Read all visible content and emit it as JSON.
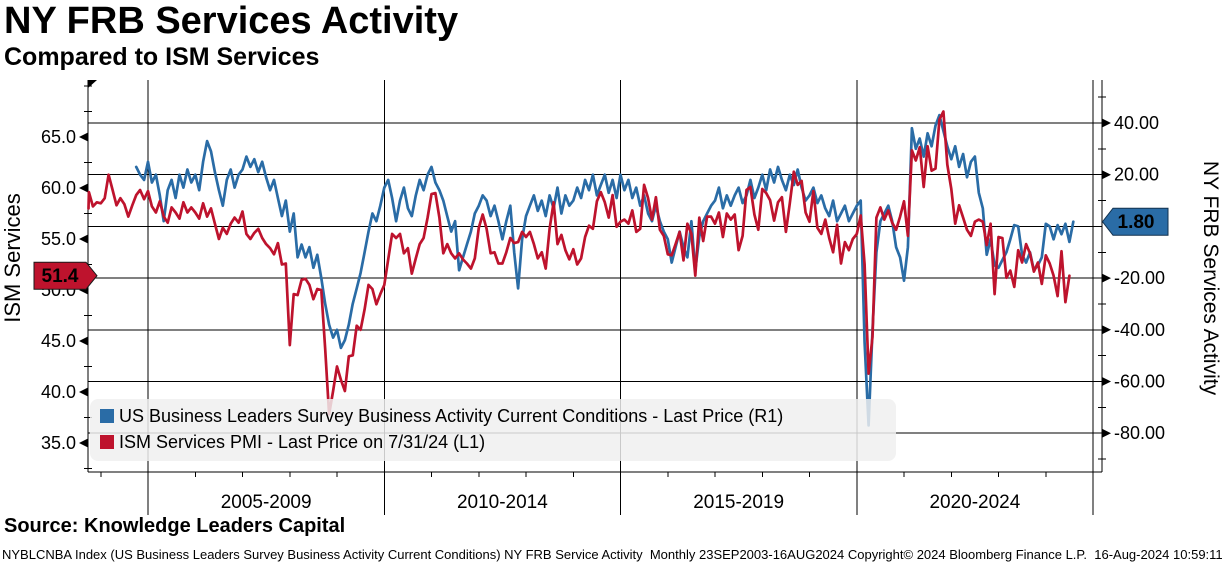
{
  "header": {
    "title": "NY FRB Services Activity",
    "subtitle": "Compared to ISM Services"
  },
  "source_line": "Source: Knowledge Leaders Capital",
  "footnote": "NYBLCNBA Index (US Business Leaders Survey Business Activity Current Conditions) NY FRB Service Activity  Monthly 23SEP2003-16AUG2024 Copyright© 2024 Bloomberg Finance L.P.  16-Aug-2024 10:59:11",
  "chart_data": {
    "type": "line",
    "title": "NY FRB Services Activity",
    "subtitle": "Compared to ISM Services",
    "grid": true,
    "x_axis": {
      "period_labels": [
        "2005-2009",
        "2010-2014",
        "2015-2019",
        "2020-2024"
      ],
      "boundary_years": [
        2005,
        2010,
        2015,
        2020,
        2025
      ],
      "range_start": "Sep 2003",
      "range_end": "Aug 2024",
      "frequency": "monthly"
    },
    "left_axis": {
      "title": "ISM Services",
      "tick_labels": [
        "65.0",
        "60.0",
        "55.0",
        "50.0",
        "45.0",
        "40.0",
        "35.0"
      ],
      "tick_values": [
        65,
        60,
        55,
        50,
        45,
        40,
        35
      ],
      "minor_tick_values": [
        70,
        67.5,
        62.5,
        57.5,
        52.5,
        47.5,
        42.5,
        37.5,
        32.5
      ],
      "last_price": {
        "label": "51.4",
        "value": 51.4
      }
    },
    "right_axis": {
      "title": "NY FRB Services Activity",
      "tick_labels": [
        "40.00",
        "20.00",
        "-20.00",
        "-40.00",
        "-60.00",
        "-80.00"
      ],
      "tick_values": [
        40,
        20,
        -20,
        -40,
        -60,
        -80
      ],
      "grid_values": [
        40,
        20,
        0,
        -20,
        -40,
        -60,
        -80
      ],
      "minor_tick_values": [
        50,
        30,
        10,
        -10,
        -30,
        -50,
        -70,
        -90
      ],
      "last_price": {
        "label": "1.80",
        "value": 1.8
      }
    },
    "legend": [
      {
        "label": "US Business Leaders Survey Business Activity Current Conditions - Last Price (R1)",
        "color": "#2a6ca6"
      },
      {
        "label": "ISM Services PMI - Last Price on 7/31/24 (L1)",
        "color": "#be132d"
      }
    ],
    "colors": {
      "blue": "#2a6ca6",
      "red": "#be132d",
      "grid": "#000000",
      "legend_bg": "#efefef"
    },
    "series": [
      {
        "name": "US Business Leaders Survey Business Activity Current Conditions",
        "axis": "R1",
        "color": "#2a6ca6",
        "start": {
          "year": 2004,
          "month": 10
        },
        "values": [
          23,
          20,
          18,
          25,
          17,
          20,
          12,
          2,
          14,
          18,
          11,
          20,
          15,
          22,
          17,
          20,
          14,
          25,
          33,
          29,
          21,
          14,
          8,
          18,
          22,
          15,
          20,
          22,
          27,
          23,
          26,
          21,
          25,
          19,
          14,
          18,
          11,
          4,
          10,
          -2,
          5,
          -12,
          -7,
          -12,
          -8,
          -16,
          -11,
          -20,
          -30,
          -38,
          -43,
          -40,
          -47,
          -44,
          -38,
          -30,
          -24,
          -18,
          -10,
          -2,
          5,
          2,
          8,
          15,
          18,
          11,
          2,
          10,
          15,
          7,
          4,
          12,
          18,
          14,
          20,
          23,
          17,
          14,
          10,
          4,
          -2,
          2,
          -17,
          -12,
          -7,
          -2,
          5,
          8,
          12,
          10,
          4,
          8,
          2,
          -5,
          2,
          8,
          -10,
          -24,
          -5,
          4,
          8,
          12,
          6,
          10,
          4,
          12,
          7,
          15,
          5,
          12,
          8,
          10,
          15,
          11,
          18,
          14,
          20,
          12,
          16,
          20,
          13,
          18,
          11,
          20,
          14,
          18,
          11,
          15,
          8,
          12,
          5,
          2,
          8,
          2,
          -2,
          -5,
          -14,
          -8,
          -2,
          -8,
          -12,
          2,
          -17,
          -4,
          2,
          5,
          8,
          10,
          15,
          7,
          12,
          8,
          12,
          15,
          9,
          12,
          18,
          11,
          15,
          20,
          14,
          22,
          17,
          23,
          18,
          14,
          20,
          16,
          22,
          15,
          10,
          12,
          15,
          9,
          12,
          7,
          4,
          10,
          2,
          5,
          8,
          2,
          5,
          8,
          10,
          -45,
          -77,
          -40,
          -10,
          2,
          5,
          8,
          2,
          -8,
          -12,
          -21,
          -8,
          38,
          30,
          34,
          27,
          36,
          31,
          39,
          43,
          37,
          31,
          26,
          31,
          23,
          28,
          19,
          25,
          27,
          13,
          7,
          -11,
          -5,
          -15,
          -16,
          -13,
          -10,
          -5,
          0.5,
          0,
          -11,
          -14,
          -10,
          -17,
          -15,
          -12,
          1,
          0,
          -5,
          0.5,
          -3,
          1,
          -6,
          1.8
        ]
      },
      {
        "name": "ISM Services PMI",
        "axis": "L1",
        "color": "#be132d",
        "start": {
          "year": 2003,
          "month": 9
        },
        "values": [
          58,
          59.6,
          58.2,
          58.6,
          58.5,
          59,
          61.3,
          59.8,
          58.3,
          59,
          58.4,
          57.2,
          58.3,
          59.3,
          59.8,
          58.9,
          59.7,
          58.2,
          57.6,
          58.7,
          57.2,
          56.6,
          58.1,
          57.6,
          57,
          58.6,
          57.6,
          58.1,
          57.6,
          57,
          58.5,
          57.2,
          58,
          56.5,
          55,
          56.1,
          55.5,
          56.5,
          57.1,
          56.6,
          57.7,
          55.5,
          55,
          55.6,
          56,
          55.1,
          54.5,
          54.1,
          53.5,
          54.6,
          52.5,
          52.6,
          44.6,
          49.6,
          49.5,
          51,
          51.1,
          50.5,
          49.1,
          50.1,
          50,
          44.2,
          37.8,
          40.1,
          42.5,
          41.2,
          40.1,
          43.5,
          43.6,
          46.5,
          46.1,
          48.1,
          50.5,
          50.1,
          48.6,
          49.6,
          50.5,
          53,
          55.5,
          55.1,
          55.5,
          53.6,
          54.1,
          51.6,
          53.1,
          54.5,
          55.1,
          57.1,
          59.4,
          59.5,
          57.1,
          53.6,
          54.5,
          53.6,
          53.1,
          53.6,
          53,
          52.6,
          52.1,
          53.1,
          56.1,
          57.4,
          56,
          53.6,
          53.7,
          52.6,
          52.6,
          53.7,
          55.1,
          54.6,
          54.7,
          55.7,
          55.2,
          55.7,
          54.5,
          53.1,
          53.7,
          52.1,
          56,
          58.6,
          54.5,
          55.4,
          53.9,
          53,
          54,
          52.5,
          53.1,
          55.2,
          56.3,
          56,
          58.7,
          59.6,
          58.6,
          57.1,
          59.3,
          56.2,
          56.7,
          56.9,
          56.5,
          57.8,
          55.7,
          56,
          60.3,
          59,
          56.9,
          59.1,
          55.9,
          55.3,
          53.5,
          53.4,
          54.5,
          55.7,
          52.9,
          56.5,
          55.5,
          51.4,
          57.1,
          54.8,
          57.2,
          57.2,
          56.5,
          57.6,
          55.2,
          57.5,
          56.9,
          57.4,
          53.9,
          55.3,
          59.8,
          60.1,
          57.4,
          55.9,
          59.9,
          59.5,
          58.8,
          56.8,
          58.6,
          59.1,
          55.7,
          58.5,
          61.6,
          60.3,
          60.7,
          57.6,
          56.7,
          59.7,
          56.1,
          55.5,
          56.9,
          55.1,
          53.7,
          56.4,
          52.6,
          54.7,
          53.9,
          55,
          55.5,
          57.3,
          52.5,
          41.8,
          45.4,
          57.1,
          58.1,
          56.9,
          57.8,
          56.6,
          55.9,
          57.2,
          58.7,
          55.3,
          63.7,
          62.7,
          64,
          60.1,
          64.1,
          61.7,
          61.9,
          66.7,
          67.5,
          62.3,
          59.9,
          56.5,
          58.3,
          57.1,
          55.9,
          55.3,
          56.7,
          56.9,
          56.7,
          54.4,
          56.5,
          49.6,
          55.2,
          55.1,
          51.2,
          51.9,
          50.3,
          53.9,
          52.7,
          54.5,
          53.6,
          51.8,
          52.7,
          50.6,
          53.4,
          52.6,
          51.4,
          49.4,
          53.8,
          48.8,
          51.4
        ]
      }
    ]
  }
}
